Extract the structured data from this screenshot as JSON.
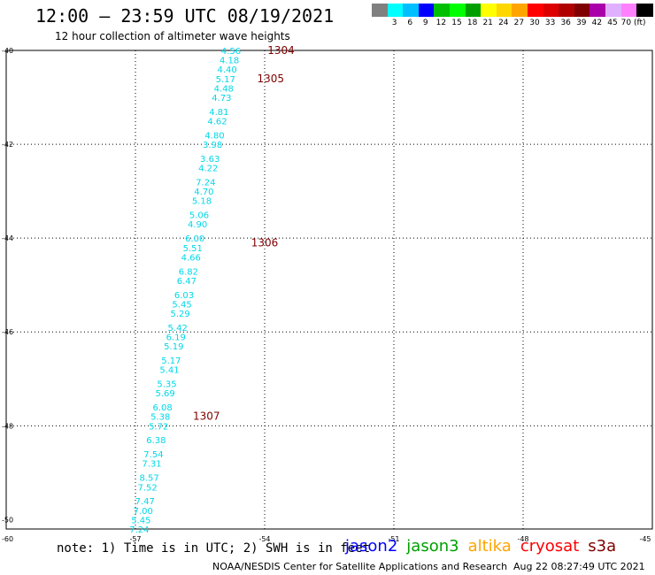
{
  "header": {
    "title": "12:00 – 23:59 UTC 08/19/2021",
    "subtitle": "12 hour collection of altimeter wave heights"
  },
  "color_scale": {
    "colors": [
      "#808080",
      "#00ffff",
      "#00bfff",
      "#0000ff",
      "#00bf00",
      "#00ff00",
      "#009f00",
      "#ffff00",
      "#ffd700",
      "#ffa500",
      "#ff0000",
      "#dd0000",
      "#b00000",
      "#800000",
      "#aa00aa",
      "#e0b0ff",
      "#ff80ff",
      "#000000"
    ],
    "labels": [
      "3",
      "6",
      "9",
      "12",
      "15",
      "18",
      "21",
      "24",
      "27",
      "30",
      "33",
      "36",
      "39",
      "42",
      "45",
      "70 (ft)"
    ]
  },
  "chart_data": {
    "type": "scatter",
    "x_axis": {
      "ticks": [
        "-57",
        "-54",
        "-51",
        "-48",
        "-45"
      ],
      "range": [
        -60,
        -45
      ]
    },
    "y_axis": {
      "ticks": [
        "-40",
        "-42",
        "-44",
        "-46",
        "-48",
        "-50"
      ],
      "range": [
        -50.2,
        -40
      ],
      "bottom_label": "-60"
    },
    "grid": true,
    "point_color": "#00d8e8",
    "pass_label_color": "#800000",
    "points": [
      {
        "lat": -40.0,
        "lon": -54.78,
        "value": "4.56"
      },
      {
        "lat": -40.2,
        "lon": -54.82,
        "value": "4.18"
      },
      {
        "lat": -40.4,
        "lon": -54.87,
        "value": "4.40"
      },
      {
        "lat": -40.6,
        "lon": -54.91,
        "value": "5.17"
      },
      {
        "lat": -40.8,
        "lon": -54.95,
        "value": "4.48"
      },
      {
        "lat": -41.0,
        "lon": -55.0,
        "value": "4.73"
      },
      {
        "lat": -41.3,
        "lon": -55.06,
        "value": "4.81"
      },
      {
        "lat": -41.5,
        "lon": -55.1,
        "value": "4.62"
      },
      {
        "lat": -41.8,
        "lon": -55.16,
        "value": "4.80"
      },
      {
        "lat": -42.0,
        "lon": -55.21,
        "value": "3.98"
      },
      {
        "lat": -42.3,
        "lon": -55.27,
        "value": "3.63"
      },
      {
        "lat": -42.5,
        "lon": -55.31,
        "value": "4.22"
      },
      {
        "lat": -42.8,
        "lon": -55.37,
        "value": "7.24"
      },
      {
        "lat": -43.0,
        "lon": -55.41,
        "value": "4.70"
      },
      {
        "lat": -43.2,
        "lon": -55.46,
        "value": "5.18"
      },
      {
        "lat": -43.5,
        "lon": -55.52,
        "value": "5.06"
      },
      {
        "lat": -43.7,
        "lon": -55.56,
        "value": "4.90"
      },
      {
        "lat": -44.0,
        "lon": -55.62,
        "value": "6.00"
      },
      {
        "lat": -44.2,
        "lon": -55.67,
        "value": "5.51"
      },
      {
        "lat": -44.4,
        "lon": -55.71,
        "value": "4.66"
      },
      {
        "lat": -44.7,
        "lon": -55.77,
        "value": "6.82"
      },
      {
        "lat": -44.9,
        "lon": -55.81,
        "value": "6.47"
      },
      {
        "lat": -45.2,
        "lon": -55.87,
        "value": "6.03"
      },
      {
        "lat": -45.4,
        "lon": -55.92,
        "value": "5.45"
      },
      {
        "lat": -45.6,
        "lon": -55.96,
        "value": "5.29"
      },
      {
        "lat": -45.9,
        "lon": -56.02,
        "value": "5.42"
      },
      {
        "lat": -46.1,
        "lon": -56.06,
        "value": "6.19"
      },
      {
        "lat": -46.3,
        "lon": -56.11,
        "value": "5.19"
      },
      {
        "lat": -46.6,
        "lon": -56.17,
        "value": "5.17"
      },
      {
        "lat": -46.8,
        "lon": -56.21,
        "value": "5.41"
      },
      {
        "lat": -47.1,
        "lon": -56.27,
        "value": "5.35"
      },
      {
        "lat": -47.3,
        "lon": -56.31,
        "value": "5.69"
      },
      {
        "lat": -47.6,
        "lon": -56.37,
        "value": "6.08"
      },
      {
        "lat": -47.8,
        "lon": -56.42,
        "value": "5.38"
      },
      {
        "lat": -48.0,
        "lon": -56.46,
        "value": "5.72"
      },
      {
        "lat": -48.3,
        "lon": -56.52,
        "value": "6.38"
      },
      {
        "lat": -48.6,
        "lon": -56.58,
        "value": "7.54"
      },
      {
        "lat": -48.8,
        "lon": -56.62,
        "value": "7.31"
      },
      {
        "lat": -49.1,
        "lon": -56.68,
        "value": "8.57"
      },
      {
        "lat": -49.3,
        "lon": -56.72,
        "value": "7.52"
      },
      {
        "lat": -49.6,
        "lon": -56.78,
        "value": "7.47"
      },
      {
        "lat": -49.8,
        "lon": -56.82,
        "value": "7.00"
      },
      {
        "lat": -50.0,
        "lon": -56.87,
        "value": "5.45"
      },
      {
        "lat": -50.2,
        "lon": -56.91,
        "value": "7.24"
      }
    ],
    "pass_labels": [
      {
        "lat": -40.0,
        "lon": -53.62,
        "text": "1304"
      },
      {
        "lat": -40.6,
        "lon": -53.86,
        "text": "1305"
      },
      {
        "lat": -44.1,
        "lon": -54.0,
        "text": "1306"
      },
      {
        "lat": -47.8,
        "lon": -55.35,
        "text": "1307"
      }
    ]
  },
  "legend": {
    "satellites": [
      {
        "name": "jason2",
        "color": "#0000ff"
      },
      {
        "name": "jason3",
        "color": "#00a000"
      },
      {
        "name": "altika",
        "color": "#ffa500"
      },
      {
        "name": "cryosat",
        "color": "#ff0000"
      },
      {
        "name": "s3a",
        "color": "#800000"
      }
    ]
  },
  "footer": {
    "note": "note: 1) Time is in UTC; 2) SWH is in feet",
    "credit": "NOAA/NESDIS Center for Satellite Applications and Research",
    "timestamp": "Aug 22 08:27:49 UTC 2021"
  }
}
